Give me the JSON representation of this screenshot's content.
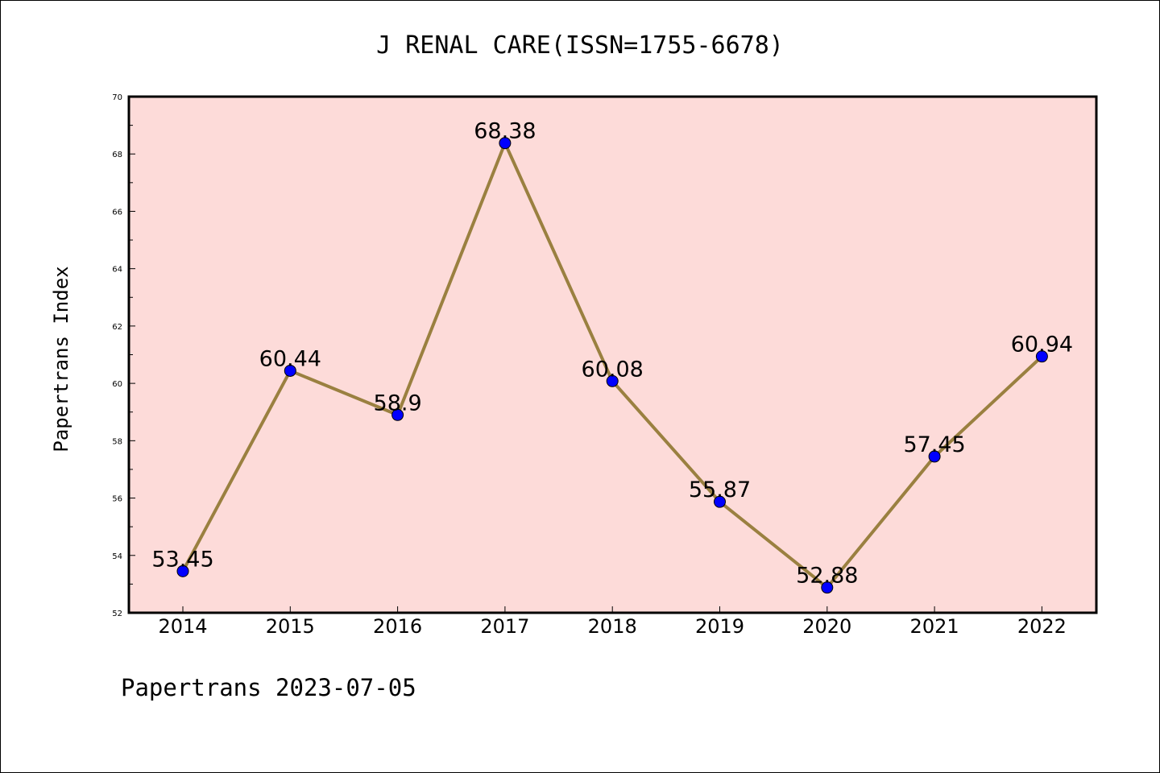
{
  "footer_text": "Papertrans 2023-07-05",
  "chart_data": {
    "type": "line",
    "title": "J RENAL CARE(ISSN=1755-6678)",
    "xlabel": "",
    "ylabel": "Papertrans Index",
    "categories": [
      "2014",
      "2015",
      "2016",
      "2017",
      "2018",
      "2019",
      "2020",
      "2021",
      "2022"
    ],
    "series": [
      {
        "values": [
          53.45,
          60.44,
          58.9,
          68.38,
          60.08,
          55.87,
          52.88,
          57.45,
          60.94
        ],
        "labels": [
          "53.45",
          "60.44",
          "58.9",
          "68.38",
          "60.08",
          "55.87",
          "52.88",
          "57.45",
          "60.94"
        ]
      }
    ],
    "ylim": [
      52,
      70
    ],
    "yticks": [
      "52",
      "54",
      "56",
      "58",
      "60",
      "62",
      "64",
      "66",
      "68",
      "70"
    ],
    "grid": false,
    "colors": {
      "plot_background": "#fddbd9",
      "line": "#9a8040",
      "marker": "#0000ff"
    }
  }
}
